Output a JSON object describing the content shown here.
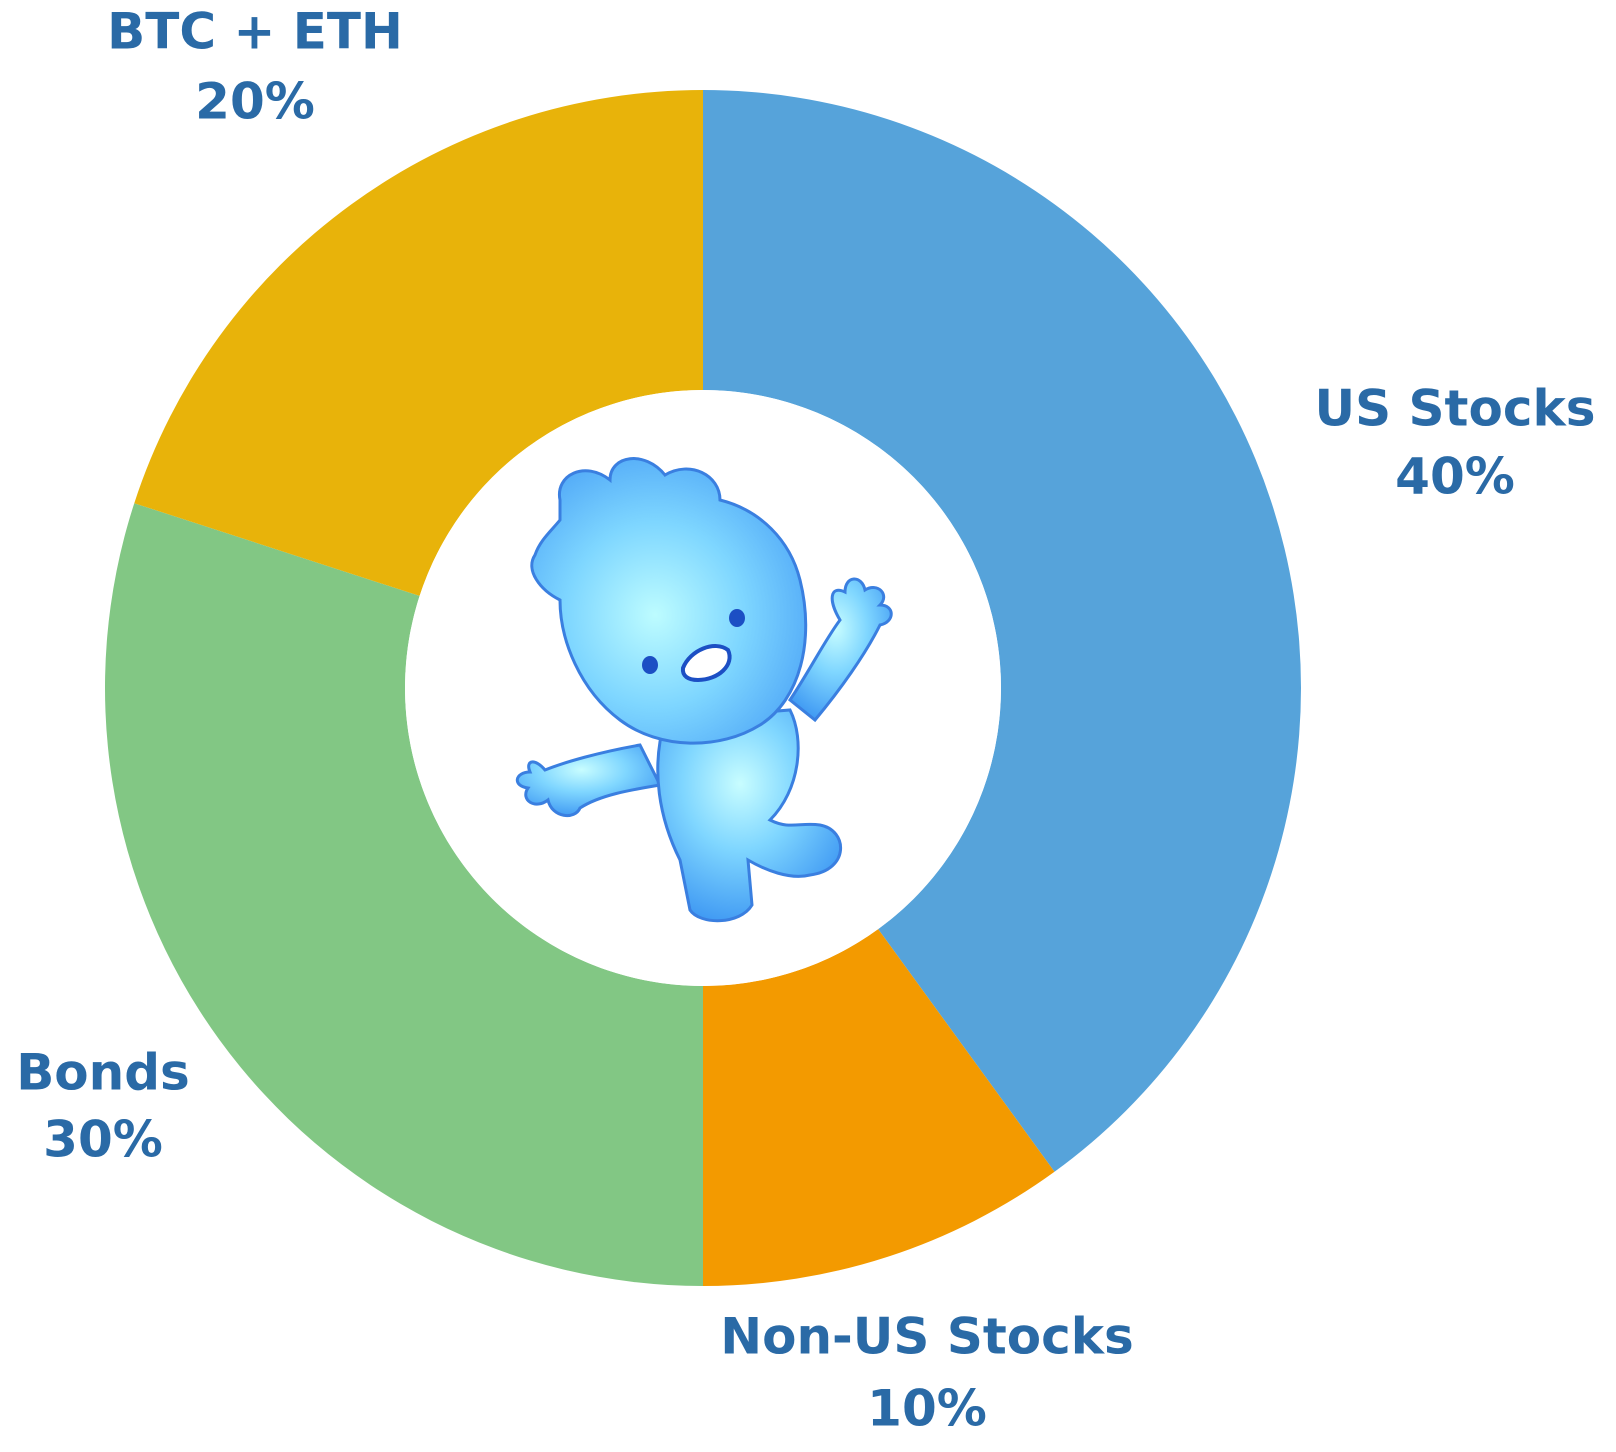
{
  "chart_data": {
    "type": "pie",
    "donut": true,
    "start_angle_deg": 0,
    "direction": "clockwise",
    "categories": [
      "US Stocks",
      "Non-US Stocks",
      "Bonds",
      "BTC + ETH"
    ],
    "values": [
      40,
      10,
      30,
      20
    ],
    "value_labels": [
      "40%",
      "10%",
      "30%",
      "20%"
    ],
    "colors": [
      "#56a3da",
      "#f39a00",
      "#82c784",
      "#e8b30a"
    ],
    "label_color": "#2a6aa6",
    "center_image": "blue-mascot-waving"
  }
}
